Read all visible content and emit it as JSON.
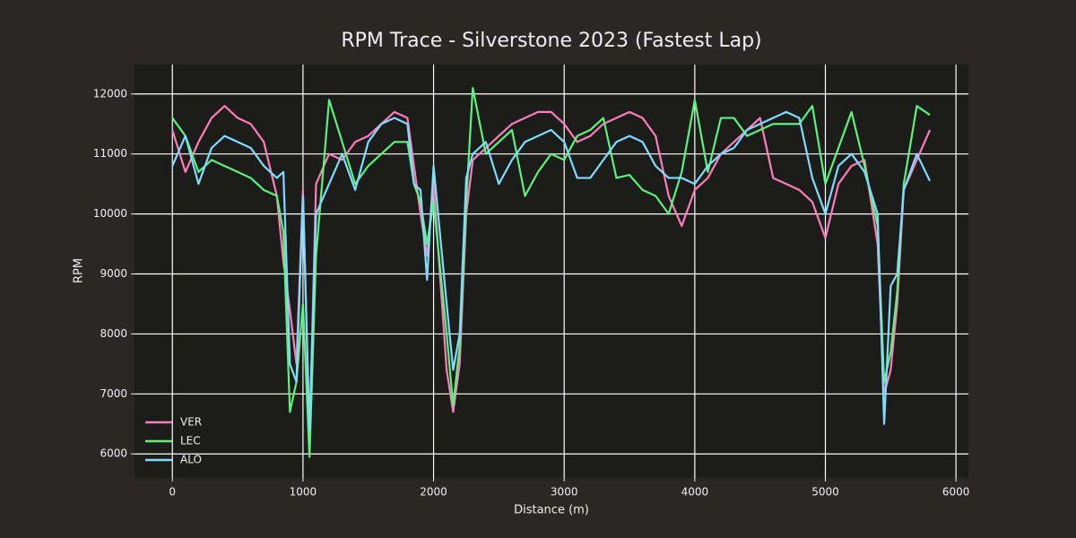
{
  "chart_data": {
    "type": "line",
    "title": "RPM Trace - Silverstone 2023 (Fastest Lap)",
    "xlabel": "Distance (m)",
    "ylabel": "RPM",
    "xlim": [
      -290,
      6095
    ],
    "ylim": [
      5600,
      12490
    ],
    "xticks": [
      0,
      1000,
      2000,
      3000,
      4000,
      5000,
      6000
    ],
    "yticks": [
      6000,
      7000,
      8000,
      9000,
      10000,
      11000,
      12000
    ],
    "grid": true,
    "legend": "lower left",
    "x": [
      0,
      100,
      200,
      300,
      400,
      500,
      600,
      700,
      800,
      850,
      900,
      950,
      1000,
      1050,
      1100,
      1200,
      1300,
      1400,
      1500,
      1600,
      1700,
      1800,
      1850,
      1900,
      1950,
      2000,
      2100,
      2150,
      2200,
      2250,
      2300,
      2400,
      2500,
      2600,
      2700,
      2800,
      2900,
      3000,
      3100,
      3200,
      3300,
      3400,
      3500,
      3600,
      3700,
      3800,
      3900,
      4000,
      4100,
      4200,
      4300,
      4400,
      4500,
      4600,
      4700,
      4800,
      4900,
      5000,
      5100,
      5200,
      5300,
      5400,
      5450,
      5500,
      5550,
      5600,
      5700,
      5800
    ],
    "series": [
      {
        "name": "VER",
        "color": "#ff7eb9",
        "values": [
          11400,
          10700,
          11200,
          11600,
          11800,
          11600,
          11500,
          11200,
          10300,
          9200,
          8400,
          7500,
          10400,
          6200,
          10500,
          11000,
          10900,
          11200,
          11300,
          11500,
          11700,
          11600,
          10800,
          10000,
          9300,
          10500,
          7400,
          6700,
          7500,
          10000,
          10900,
          11100,
          11300,
          11500,
          11600,
          11700,
          11700,
          11500,
          11200,
          11300,
          11500,
          11600,
          11700,
          11600,
          11300,
          10300,
          9800,
          10400,
          10600,
          11000,
          11200,
          11400,
          11600,
          10600,
          10500,
          10400,
          10200,
          9600,
          10500,
          10800,
          10900,
          9500,
          7000,
          7400,
          8500,
          10400,
          10900,
          11400
        ]
      },
      {
        "name": "LEC",
        "color": "#5cf27c",
        "values": [
          11600,
          11300,
          10700,
          10900,
          10800,
          10700,
          10600,
          10400,
          10300,
          9700,
          6700,
          7200,
          8500,
          5950,
          9300,
          11900,
          11200,
          10500,
          10800,
          11000,
          11200,
          11200,
          10500,
          10200,
          9500,
          10200,
          8000,
          6800,
          7800,
          10200,
          12100,
          11000,
          11200,
          11400,
          10300,
          10700,
          11000,
          10900,
          11300,
          11400,
          11600,
          10600,
          10650,
          10400,
          10300,
          10000,
          10700,
          11900,
          10700,
          11600,
          11600,
          11300,
          11400,
          11500,
          11500,
          11500,
          11800,
          10500,
          11100,
          11700,
          10800,
          9800,
          7200,
          7700,
          8700,
          10500,
          11800,
          11650
        ]
      },
      {
        "name": "ALO",
        "color": "#80dcff",
        "values": [
          10800,
          11300,
          10500,
          11100,
          11300,
          11200,
          11100,
          10800,
          10600,
          10700,
          7500,
          7200,
          10300,
          6400,
          10000,
          10500,
          11000,
          10400,
          11200,
          11500,
          11600,
          11500,
          10500,
          10400,
          8900,
          10800,
          8500,
          7400,
          8000,
          10600,
          11000,
          11200,
          10500,
          10900,
          11200,
          11300,
          11400,
          11200,
          10600,
          10600,
          10900,
          11200,
          11300,
          11200,
          10800,
          10600,
          10600,
          10500,
          10800,
          11000,
          11100,
          11400,
          11500,
          11600,
          11700,
          11600,
          10600,
          10000,
          10800,
          11000,
          10700,
          10000,
          6500,
          8800,
          9000,
          10400,
          11000,
          10550
        ]
      }
    ]
  }
}
